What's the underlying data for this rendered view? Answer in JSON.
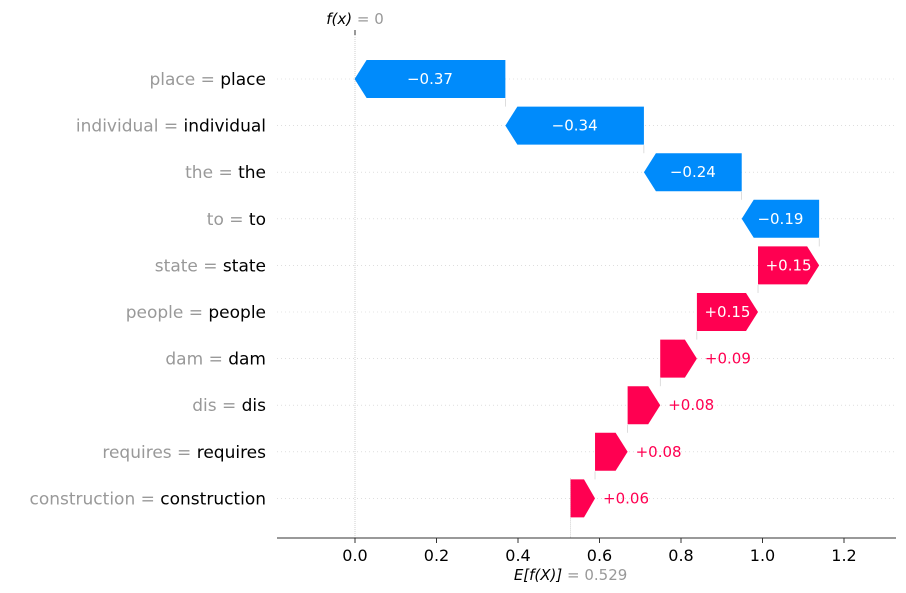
{
  "chart_data": {
    "type": "bar",
    "subtype": "waterfall",
    "fx_label": "f(x)",
    "fx_value": "= 0",
    "base_label": "E[f(X)]",
    "base_value": "= 0.529",
    "base": 0.529,
    "fx": 0,
    "features": [
      {
        "name": "place = ",
        "value": "place",
        "delta": -0.37,
        "label": "−0.37"
      },
      {
        "name": "individual = ",
        "value": "individual",
        "delta": -0.34,
        "label": "−0.34"
      },
      {
        "name": "the = ",
        "value": "the",
        "delta": -0.24,
        "label": "−0.24"
      },
      {
        "name": "to = ",
        "value": "to",
        "delta": -0.19,
        "label": "−0.19"
      },
      {
        "name": "state = ",
        "value": "state",
        "delta": 0.15,
        "label": "+0.15"
      },
      {
        "name": "people = ",
        "value": "people",
        "delta": 0.15,
        "label": "+0.15"
      },
      {
        "name": "dam = ",
        "value": "dam",
        "delta": 0.09,
        "label": "+0.09"
      },
      {
        "name": "dis = ",
        "value": "dis",
        "delta": 0.08,
        "label": "+0.08"
      },
      {
        "name": "requires = ",
        "value": "requires",
        "delta": 0.08,
        "label": "+0.08"
      },
      {
        "name": "construction = ",
        "value": "construction",
        "delta": 0.06,
        "label": "+0.06"
      }
    ],
    "xticks": [
      {
        "v": 0.0,
        "label": "0.0"
      },
      {
        "v": 0.2,
        "label": "0.2"
      },
      {
        "v": 0.4,
        "label": "0.4"
      },
      {
        "v": 0.6,
        "label": "0.6"
      },
      {
        "v": 0.8,
        "label": "0.8"
      },
      {
        "v": 1.0,
        "label": "1.0"
      },
      {
        "v": 1.2,
        "label": "1.2"
      }
    ],
    "xlim": [
      -0.19,
      1.33
    ],
    "colors": {
      "negative": "#008bfb",
      "positive": "#ff0051",
      "muted": "#999999"
    }
  }
}
